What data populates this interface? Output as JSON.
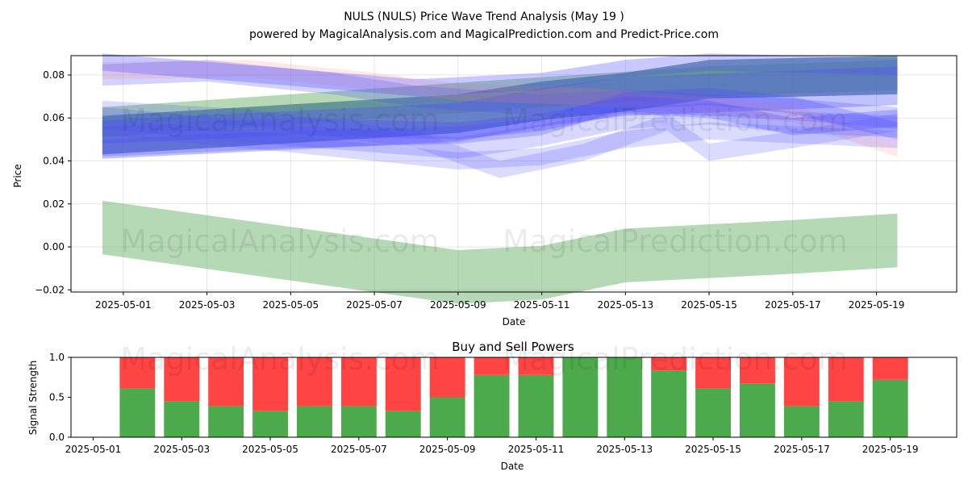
{
  "header": {
    "title": "NULS (NULS) Price Wave Trend Analysis (May 19 )",
    "subtitle": "powered by MagicalAnalysis.com and MagicalPrediction.com and Predict-Price.com"
  },
  "watermarks": [
    "MagicalAnalysis.com",
    "MagicalPrediction.com"
  ],
  "colors": {
    "blue": "#4d4dff",
    "red": "#ff8080",
    "green": "#5aaa5a",
    "teal": "#4a7f8f",
    "buy": "#4caa4c",
    "sell": "#ff4444"
  },
  "chart_data": [
    {
      "type": "area",
      "title": "",
      "xlabel": "Date",
      "ylabel": "Price",
      "x_ticks": [
        "2025-05-01",
        "2025-05-03",
        "2025-05-05",
        "2025-05-07",
        "2025-05-09",
        "2025-05-11",
        "2025-05-13",
        "2025-05-15",
        "2025-05-17",
        "2025-05-19"
      ],
      "y_ticks": [
        "−0.02",
        "0.00",
        "0.02",
        "0.04",
        "0.06",
        "0.08"
      ],
      "xlim": [
        "2025-04-29T18:00",
        "2025-05-20T22:00"
      ],
      "ylim": [
        -0.021,
        0.089
      ],
      "grid": true,
      "bands": [
        {
          "color": "green",
          "opacity": 0.45,
          "points": [
            [
              "2025-04-30T12:00",
              0.009
            ],
            [
              "2025-05-09",
              -0.014
            ],
            [
              "2025-05-11",
              -0.012
            ],
            [
              "2025-05-13",
              -0.004
            ],
            [
              "2025-05-17",
              0.0
            ],
            [
              "2025-05-19T12:00",
              0.003
            ]
          ],
          "width": 0.025
        },
        {
          "color": "green",
          "opacity": 0.45,
          "points": [
            [
              "2025-04-30T12:00",
              0.058
            ],
            [
              "2025-05-11",
              0.072
            ],
            [
              "2025-05-15",
              0.077
            ],
            [
              "2025-05-19T12:00",
              0.08
            ]
          ],
          "width": 0.014
        },
        {
          "color": "teal",
          "opacity": 0.75,
          "points": [
            [
              "2025-04-30T12:00",
              0.052
            ],
            [
              "2025-05-09",
              0.062
            ],
            [
              "2025-05-11",
              0.068
            ],
            [
              "2025-05-13",
              0.072
            ],
            [
              "2025-05-15",
              0.078
            ],
            [
              "2025-05-19T12:00",
              0.08
            ]
          ],
          "width": 0.018
        },
        {
          "color": "blue",
          "opacity": 0.35,
          "points": [
            [
              "2025-04-30T12:00",
              0.05
            ],
            [
              "2025-05-09",
              0.058
            ],
            [
              "2025-05-11",
              0.065
            ],
            [
              "2025-05-13",
              0.07
            ],
            [
              "2025-05-19T12:00",
              0.075
            ]
          ],
          "width": 0.018
        },
        {
          "color": "blue",
          "opacity": 0.25,
          "points": [
            [
              "2025-04-30T12:00",
              0.08
            ],
            [
              "2025-05-03",
              0.082
            ],
            [
              "2025-05-06",
              0.076
            ],
            [
              "2025-05-08",
              0.07
            ],
            [
              "2025-05-11",
              0.066
            ],
            [
              "2025-05-13",
              0.068
            ],
            [
              "2025-05-17",
              0.064
            ],
            [
              "2025-05-19T12:00",
              0.06
            ]
          ],
          "width": 0.01
        },
        {
          "color": "red",
          "opacity": 0.18,
          "points": [
            [
              "2025-04-30T12:00",
              0.082
            ],
            [
              "2025-05-04",
              0.083
            ],
            [
              "2025-05-07",
              0.077
            ],
            [
              "2025-05-09",
              0.072
            ],
            [
              "2025-05-12",
              0.07
            ],
            [
              "2025-05-15",
              0.066
            ],
            [
              "2025-05-17",
              0.062
            ],
            [
              "2025-05-19T12:00",
              0.046
            ]
          ],
          "width": 0.008
        },
        {
          "color": "blue",
          "opacity": 0.22,
          "points": [
            [
              "2025-04-30T12:00",
              0.06
            ],
            [
              "2025-05-05",
              0.052
            ],
            [
              "2025-05-09",
              0.046
            ],
            [
              "2025-05-11",
              0.052
            ],
            [
              "2025-05-13",
              0.06
            ],
            [
              "2025-05-15",
              0.062
            ],
            [
              "2025-05-17",
              0.058
            ],
            [
              "2025-05-19T12:00",
              0.056
            ]
          ],
          "width": 0.01
        },
        {
          "color": "blue",
          "opacity": 0.2,
          "points": [
            [
              "2025-04-30T12:00",
              0.056
            ],
            [
              "2025-05-05",
              0.048
            ],
            [
              "2025-05-09",
              0.04
            ],
            [
              "2025-05-11",
              0.042
            ],
            [
              "2025-05-13",
              0.05
            ],
            [
              "2025-05-15",
              0.054
            ],
            [
              "2025-05-19T12:00",
              0.05
            ]
          ],
          "width": 0.008
        },
        {
          "color": "blue",
          "opacity": 0.2,
          "points": [
            [
              "2025-04-30T12:00",
              0.064
            ],
            [
              "2025-05-04",
              0.06
            ],
            [
              "2025-05-08",
              0.05
            ],
            [
              "2025-05-10",
              0.036
            ],
            [
              "2025-05-12",
              0.044
            ],
            [
              "2025-05-14",
              0.058
            ],
            [
              "2025-05-15",
              0.044
            ],
            [
              "2025-05-17",
              0.05
            ],
            [
              "2025-05-19T12:00",
              0.058
            ]
          ],
          "width": 0.008
        },
        {
          "color": "blue",
          "opacity": 0.3,
          "points": [
            [
              "2025-04-30T12:00",
              0.052
            ],
            [
              "2025-05-05",
              0.056
            ],
            [
              "2025-05-09",
              0.054
            ],
            [
              "2025-05-11",
              0.058
            ],
            [
              "2025-05-13",
              0.066
            ],
            [
              "2025-05-15",
              0.064
            ],
            [
              "2025-05-17",
              0.056
            ],
            [
              "2025-05-19T12:00",
              0.06
            ]
          ],
          "width": 0.008
        },
        {
          "color": "blue",
          "opacity": 0.28,
          "points": [
            [
              "2025-04-30T12:00",
              0.046
            ],
            [
              "2025-05-05",
              0.05
            ],
            [
              "2025-05-09",
              0.052
            ],
            [
              "2025-05-11",
              0.056
            ],
            [
              "2025-05-13",
              0.068
            ],
            [
              "2025-05-15",
              0.07
            ],
            [
              "2025-05-17",
              0.066
            ],
            [
              "2025-05-19T12:00",
              0.054
            ]
          ],
          "width": 0.008
        },
        {
          "color": "blue",
          "opacity": 0.3,
          "points": [
            [
              "2025-04-30T12:00",
              0.086
            ],
            [
              "2025-05-05",
              0.079
            ],
            [
              "2025-05-08",
              0.074
            ],
            [
              "2025-05-11",
              0.077
            ],
            [
              "2025-05-13",
              0.083
            ],
            [
              "2025-05-15",
              0.086
            ],
            [
              "2025-05-19T12:00",
              0.084
            ]
          ],
          "width": 0.008
        }
      ]
    },
    {
      "type": "bar",
      "title": "Buy and Sell Powers",
      "xlabel": "Date",
      "ylabel": "Signal Strength",
      "x_ticks": [
        "2025-05-01",
        "2025-05-03",
        "2025-05-05",
        "2025-05-07",
        "2025-05-09",
        "2025-05-11",
        "2025-05-13",
        "2025-05-15",
        "2025-05-17",
        "2025-05-19"
      ],
      "y_ticks": [
        "0.0",
        "0.5",
        "1.0"
      ],
      "ylim": [
        0,
        1
      ],
      "xlim": [
        "2025-04-30T12:00",
        "2025-05-20T12:00"
      ],
      "categories": [
        "2025-05-02",
        "2025-05-03",
        "2025-05-04",
        "2025-05-05",
        "2025-05-06",
        "2025-05-07",
        "2025-05-08",
        "2025-05-09",
        "2025-05-10",
        "2025-05-11",
        "2025-05-12",
        "2025-05-13",
        "2025-05-14",
        "2025-05-15",
        "2025-05-16",
        "2025-05-17",
        "2025-05-18",
        "2025-05-19"
      ],
      "buy": [
        0.61,
        0.45,
        0.39,
        0.33,
        0.39,
        0.39,
        0.33,
        0.5,
        0.78,
        0.78,
        1.0,
        1.0,
        0.83,
        0.61,
        0.67,
        0.39,
        0.45,
        0.72
      ],
      "sell": [
        0.39,
        0.55,
        0.61,
        0.67,
        0.61,
        0.61,
        0.67,
        0.5,
        0.22,
        0.22,
        0.0,
        0.0,
        0.17,
        0.39,
        0.33,
        0.61,
        0.55,
        0.28
      ]
    }
  ]
}
